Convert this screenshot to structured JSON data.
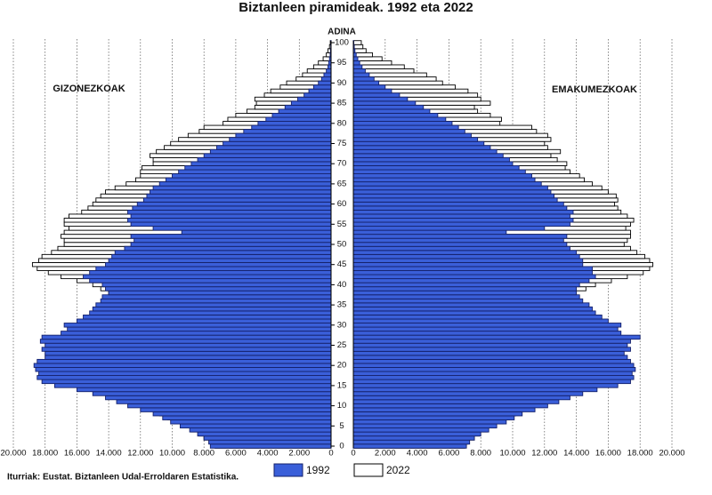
{
  "chart_data": {
    "type": "pyramid",
    "title": "Biztanleen piramideak. 1992 eta 2022",
    "axis_label": "ADINA",
    "source": "Iturriak: Eustat. Biztanleen Udal-Erroldaren Estatistika.",
    "sides": [
      {
        "label": "GIZONEZKOAK"
      },
      {
        "label": "EMAKUMEZKOAK"
      }
    ],
    "categories": [
      "0",
      null,
      null,
      null,
      null,
      "5",
      null,
      null,
      null,
      null,
      "10",
      null,
      null,
      null,
      null,
      "15",
      null,
      null,
      null,
      null,
      "20",
      null,
      null,
      null,
      null,
      "25",
      null,
      null,
      null,
      null,
      "30",
      null,
      null,
      null,
      null,
      "35",
      null,
      null,
      null,
      null,
      "40",
      null,
      null,
      null,
      null,
      "45",
      null,
      null,
      null,
      null,
      "50",
      null,
      null,
      null,
      null,
      "55",
      null,
      null,
      null,
      null,
      "60",
      null,
      null,
      null,
      null,
      "65",
      null,
      null,
      null,
      null,
      "70",
      null,
      null,
      null,
      null,
      "75",
      null,
      null,
      null,
      null,
      "80",
      null,
      null,
      null,
      null,
      "85",
      null,
      null,
      null,
      null,
      "90",
      null,
      null,
      null,
      null,
      "95",
      null,
      null,
      null,
      null,
      "100"
    ],
    "xlim": [
      0,
      20000
    ],
    "xticks": [
      0,
      {
        "value": 2000,
        "label": "2.000"
      },
      {
        "value": 4000,
        "label": "4.000"
      },
      {
        "value": 6000,
        "label": "6.000"
      },
      {
        "value": 8000,
        "label": "8.000"
      },
      {
        "value": 10000,
        "label": "10.000"
      },
      {
        "value": 12000,
        "label": "12.000"
      },
      {
        "value": 14000,
        "label": "14.000"
      },
      {
        "value": 16000,
        "label": "16.000"
      },
      {
        "value": 18000,
        "label": "18.000"
      },
      {
        "value": 20000,
        "label": "20.000"
      }
    ],
    "grid": true,
    "series": [
      {
        "name": "2022",
        "color": "#ffffff",
        "edge": "#000000",
        "values": [
          [
            7300,
            7600,
            8000,
            8300,
            8800,
            9400,
            9900,
            10300,
            10800,
            11000,
            11200,
            11000,
            11200,
            11000,
            11200,
            11500,
            11000,
            11000,
            10800,
            10800,
            10600,
            10500,
            10400,
            10500,
            10300,
            10400,
            10400,
            10500,
            10600,
            10800,
            10800,
            11000,
            11200,
            11500,
            11800,
            12200,
            12800,
            13300,
            14000,
            14500,
            15000,
            16000,
            17000,
            17800,
            18500,
            18800,
            18400,
            18200,
            17600,
            17200,
            16800,
            16800,
            17000,
            16800,
            16500,
            16800,
            16800,
            16500,
            15700,
            15300,
            15000,
            14800,
            14500,
            14200,
            13600,
            12900,
            12300,
            12000,
            12000,
            11900,
            11200,
            11200,
            11400,
            11000,
            10500,
            10100,
            9600,
            9000,
            8300,
            8000,
            6800,
            6500,
            6000,
            5300,
            4800,
            4700,
            4800,
            4200,
            3800,
            3200,
            2800,
            2200,
            1800,
            1500,
            1100,
            800,
            500,
            300,
            200,
            100,
            50
          ],
          [
            7000,
            7200,
            7600,
            7900,
            8400,
            8900,
            9400,
            9800,
            10200,
            10500,
            10700,
            10600,
            10800,
            10500,
            10600,
            10700,
            10400,
            10400,
            10200,
            10100,
            10000,
            9800,
            10000,
            9900,
            9800,
            10000,
            10200,
            10200,
            10300,
            10500,
            10600,
            10800,
            11000,
            11400,
            11800,
            12200,
            12800,
            13400,
            14000,
            14600,
            15200,
            16200,
            17200,
            18200,
            18600,
            18800,
            18600,
            18300,
            17800,
            17400,
            17000,
            17200,
            17400,
            17400,
            17100,
            17400,
            17600,
            17200,
            16800,
            16600,
            16400,
            16600,
            16500,
            16000,
            15600,
            15000,
            14500,
            14200,
            13600,
            13300,
            13400,
            12800,
            12400,
            13000,
            12200,
            12000,
            12400,
            12200,
            11500,
            11200,
            9200,
            9300,
            8600,
            7800,
            7600,
            8600,
            8000,
            7800,
            7200,
            6400,
            5600,
            5200,
            4600,
            3800,
            3200,
            2400,
            1800,
            1200,
            800,
            600,
            500
          ]
        ]
      },
      {
        "name": "1992",
        "color": "#3a5fd9",
        "edge": "#14206a",
        "values": [
          [
            7600,
            7700,
            8000,
            8400,
            8900,
            9500,
            10100,
            10600,
            11200,
            12000,
            12800,
            13500,
            14200,
            15000,
            16000,
            17400,
            18200,
            18500,
            18400,
            18600,
            18700,
            18500,
            18000,
            18000,
            18200,
            18000,
            18300,
            18200,
            17000,
            16600,
            16800,
            16000,
            15600,
            15200,
            15000,
            14800,
            14500,
            14400,
            14000,
            14200,
            14400,
            15200,
            15600,
            15200,
            14800,
            14200,
            14000,
            13800,
            13600,
            13000,
            12600,
            12400,
            12600,
            9400,
            11200,
            12600,
            12800,
            12600,
            12800,
            12500,
            12200,
            11800,
            11600,
            11400,
            11200,
            10800,
            10400,
            10000,
            9600,
            9200,
            8800,
            8400,
            8000,
            7600,
            7200,
            6800,
            6400,
            6000,
            5500,
            5000,
            4600,
            4100,
            3700,
            3300,
            2900,
            2500,
            2100,
            1700,
            1400,
            1100,
            800,
            600,
            450,
            300,
            200,
            150,
            100,
            60,
            40,
            20,
            10
          ],
          [
            7100,
            7300,
            7600,
            8000,
            8500,
            9000,
            9600,
            10100,
            10600,
            11400,
            12200,
            12900,
            13600,
            14400,
            15300,
            16600,
            17400,
            17600,
            17500,
            17700,
            17600,
            17400,
            17200,
            17000,
            17400,
            17200,
            17400,
            18000,
            16800,
            16600,
            16800,
            16000,
            15600,
            15200,
            15000,
            14800,
            14400,
            14200,
            14000,
            14000,
            14200,
            14800,
            15200,
            15000,
            15000,
            14400,
            14400,
            14200,
            14000,
            13600,
            13400,
            13200,
            13400,
            9600,
            12000,
            13600,
            13800,
            13600,
            13800,
            13400,
            13200,
            12800,
            12600,
            12400,
            12200,
            11800,
            11400,
            11200,
            10800,
            10400,
            10000,
            9800,
            9400,
            9000,
            8600,
            8200,
            7800,
            7400,
            7000,
            6600,
            6200,
            5800,
            5300,
            4800,
            4400,
            3900,
            3400,
            2900,
            2400,
            2000,
            1600,
            1300,
            1000,
            750,
            550,
            400,
            280,
            180,
            100,
            60,
            30
          ]
        ]
      }
    ]
  }
}
